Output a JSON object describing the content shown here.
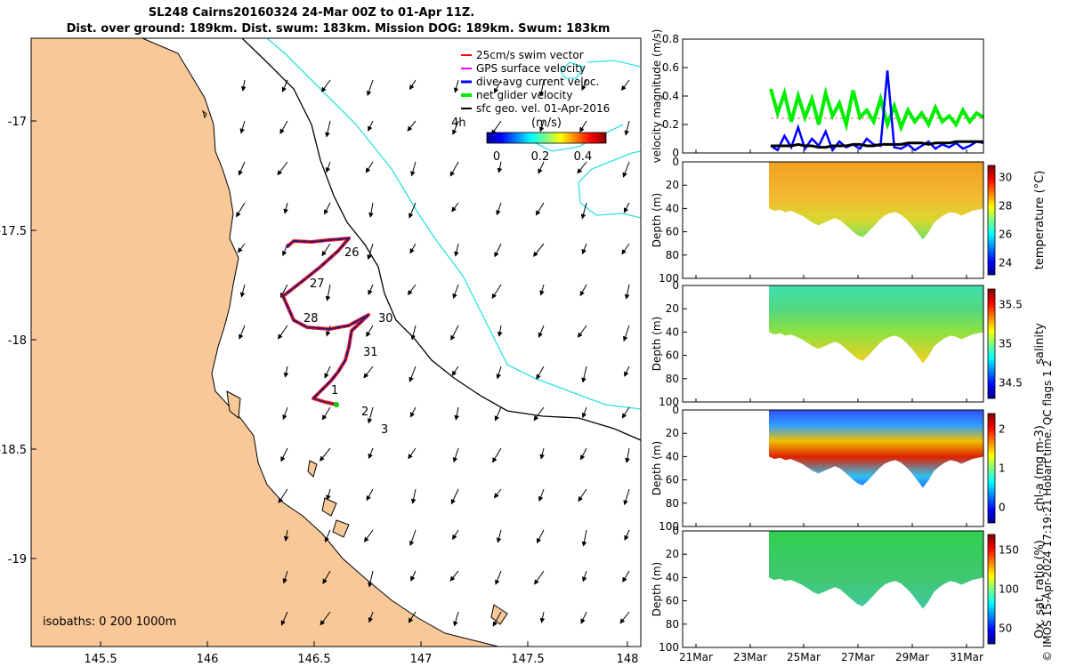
{
  "title": {
    "line1": "SL248 Cairns20160324 24-Mar 00Z to 01-Apr 11Z.",
    "line2": "Dist. over ground: 189km. Dist. swum: 183km. Mission DOG: 189km. Swum: 183km"
  },
  "map": {
    "x_ticks": [
      "145.5",
      "146",
      "146.5",
      "147",
      "147.5",
      "148"
    ],
    "y_ticks": [
      "-17",
      "-17.5",
      "-18",
      "-18.5",
      "-19"
    ],
    "isobaths_label": "isobaths: 0   200  1000m",
    "day_labels": [
      "4h",
      "26",
      "27",
      "28",
      "30",
      "31",
      "1",
      "2",
      "3"
    ],
    "legend": [
      {
        "label": "25cm/s swim vector",
        "color": "#ff0000"
      },
      {
        "label": "GPS surface velocity",
        "color": "#ff00ff"
      },
      {
        "label": "dive-avg current veloc.",
        "color": "#0000ff"
      },
      {
        "label": "net glider velocity",
        "color": "#00ee00"
      },
      {
        "label": "sfc geo. vel. 01-Apr-2016",
        "color": "#000000"
      }
    ],
    "colorbar": {
      "title": "(m/s)",
      "ticks": [
        "0",
        "0.2",
        "0.4"
      ]
    },
    "colors": {
      "land": "#f9c898",
      "isobath_200": "#000000",
      "isobath_1000": "#2ee0e0",
      "track": "#202060"
    }
  },
  "timeseries": {
    "ylabel": "velocity magnitude (m/s)",
    "yticks": [
      "0",
      "0.2",
      "0.4",
      "0.6",
      "0.8"
    ],
    "xticks": [
      "21Mar",
      "23Mar",
      "25Mar",
      "27Mar",
      "29Mar",
      "31Mar"
    ]
  },
  "sections": [
    {
      "name": "temperature",
      "cbar_label": "temperature (°C)",
      "cbar_ticks": [
        "24",
        "26",
        "28",
        "30"
      ],
      "depth_label": "Depth (m)",
      "depth_ticks": [
        "0",
        "20",
        "40",
        "60",
        "80",
        "100"
      ]
    },
    {
      "name": "salinity",
      "cbar_label": "salinity",
      "cbar_ticks": [
        "34.5",
        "35",
        "35.5"
      ],
      "depth_label": "Depth (m)",
      "depth_ticks": [
        "0",
        "20",
        "40",
        "60",
        "80",
        "100"
      ]
    },
    {
      "name": "chla",
      "cbar_label": "chl-a (mg m-3)",
      "cbar_ticks": [
        "0",
        "1",
        "2"
      ],
      "depth_label": "Depth (m)",
      "depth_ticks": [
        "0",
        "20",
        "40",
        "60",
        "80",
        "100"
      ]
    },
    {
      "name": "oxygen",
      "cbar_label": "Ox. sat. ratio (%)",
      "cbar_ticks": [
        "50",
        "100",
        "150"
      ],
      "depth_label": "Depth (m)",
      "depth_ticks": [
        "0",
        "20",
        "40",
        "60",
        "80",
        "100"
      ]
    }
  ],
  "footer": "© IMOS 15-Apr-2024 17:19:21 Hobart time. QC flags 1  2",
  "chart_data": [
    {
      "type": "line",
      "title": "",
      "ylabel": "velocity magnitude (m/s)",
      "ylim": [
        0,
        0.8
      ],
      "x_range": [
        "21Mar",
        "1Apr"
      ],
      "series": [
        {
          "name": "net glider velocity",
          "color": "#00ee00",
          "x_start": "24Mar",
          "x_end": "1Apr",
          "values": [
            0.45,
            0.28,
            0.42,
            0.22,
            0.4,
            0.25,
            0.38,
            0.2,
            0.42,
            0.26,
            0.35,
            0.2,
            0.44,
            0.25,
            0.3,
            0.22,
            0.38,
            0.2,
            0.33,
            0.18,
            0.3,
            0.22,
            0.28,
            0.2,
            0.32,
            0.22,
            0.26,
            0.2,
            0.3,
            0.22,
            0.28,
            0.25
          ]
        },
        {
          "name": "dive-avg current veloc.",
          "color": "#0000ff",
          "x_start": "24Mar",
          "x_end": "1Apr",
          "values": [
            0.05,
            0.02,
            0.12,
            0.04,
            0.18,
            0.03,
            0.1,
            0.05,
            0.15,
            0.02,
            0.08,
            0.04,
            0.06,
            0.03,
            0.1,
            0.06,
            0.05,
            0.58,
            0.04,
            0.03,
            0.06,
            0.02,
            0.05,
            0.08,
            0.03,
            0.06,
            0.04,
            0.07,
            0.03,
            0.05,
            0.08,
            0.07
          ]
        },
        {
          "name": "sfc geo. vel. 01-Apr-2016",
          "color": "#000000",
          "x_start": "24Mar",
          "x_end": "1Apr",
          "values": [
            0.05,
            0.05,
            0.05,
            0.05,
            0.06,
            0.05,
            0.05,
            0.04,
            0.04,
            0.05,
            0.05,
            0.05,
            0.06,
            0.06,
            0.05,
            0.05,
            0.06,
            0.06,
            0.06,
            0.06,
            0.07,
            0.07,
            0.07,
            0.06,
            0.07,
            0.07,
            0.07,
            0.08,
            0.08,
            0.08,
            0.08,
            0.08
          ]
        }
      ]
    }
  ]
}
